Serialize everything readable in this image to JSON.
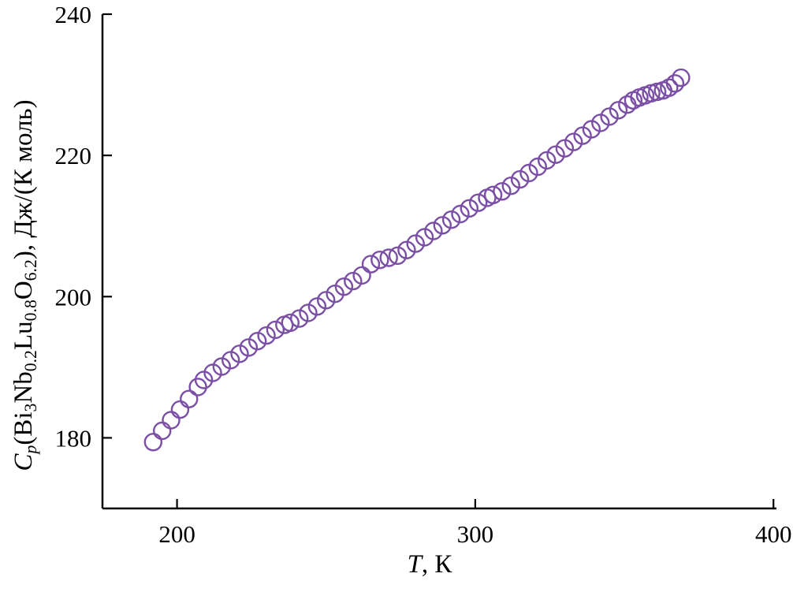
{
  "chart_data": {
    "type": "scatter",
    "title": "",
    "xlabel_text": "T, К",
    "ylabel_text": "Cp(Bi3Nb0.2Lu0.8O6.2), Дж/(К моль)",
    "xlabel_segments": [
      {
        "text": "T",
        "style": "italic"
      },
      {
        "text": ", К",
        "style": "normal"
      }
    ],
    "ylabel_segments": [
      {
        "text": "C",
        "style": "italic"
      },
      {
        "text": "p",
        "style": "italic-sub"
      },
      {
        "text": "(Bi",
        "style": "normal"
      },
      {
        "text": "3",
        "style": "sub"
      },
      {
        "text": "Nb",
        "style": "normal"
      },
      {
        "text": "0.2",
        "style": "sub"
      },
      {
        "text": "Lu",
        "style": "normal"
      },
      {
        "text": "0.8",
        "style": "sub"
      },
      {
        "text": "O",
        "style": "normal"
      },
      {
        "text": "6.2",
        "style": "sub"
      },
      {
        "text": ")",
        "style": "normal"
      },
      {
        "text": ", Дж/(К моль)",
        "style": "normal"
      }
    ],
    "xlim": [
      175,
      401
    ],
    "ylim": [
      170,
      240
    ],
    "x_ticks": [
      200,
      300,
      400
    ],
    "y_ticks": [
      180,
      200,
      220,
      240
    ],
    "grid": false,
    "legend": "none",
    "axis_color": "#000000",
    "marker": {
      "shape": "open-circle",
      "color": "#7a4fa5",
      "radius_px": 10.5,
      "stroke_width": 2.4
    },
    "series": [
      {
        "name": "Cp(Bi3Nb0.2Lu0.8O6.2)",
        "points": [
          [
            192,
            179.4
          ],
          [
            195,
            181.0
          ],
          [
            198,
            182.5
          ],
          [
            201,
            184.0
          ],
          [
            204,
            185.5
          ],
          [
            207,
            187.2
          ],
          [
            209,
            188.2
          ],
          [
            212,
            189.2
          ],
          [
            215,
            190.1
          ],
          [
            218,
            191.0
          ],
          [
            221,
            191.9
          ],
          [
            224,
            192.8
          ],
          [
            227,
            193.7
          ],
          [
            230,
            194.5
          ],
          [
            233,
            195.3
          ],
          [
            236,
            196.0
          ],
          [
            238,
            196.3
          ],
          [
            241,
            196.9
          ],
          [
            244,
            197.7
          ],
          [
            247,
            198.6
          ],
          [
            250,
            199.5
          ],
          [
            253,
            200.4
          ],
          [
            256,
            201.4
          ],
          [
            259,
            202.2
          ],
          [
            262,
            203.0
          ],
          [
            265,
            204.6
          ],
          [
            268,
            205.2
          ],
          [
            271,
            205.5
          ],
          [
            274,
            205.8
          ],
          [
            277,
            206.6
          ],
          [
            280,
            207.5
          ],
          [
            283,
            208.4
          ],
          [
            286,
            209.3
          ],
          [
            289,
            210.1
          ],
          [
            292,
            210.9
          ],
          [
            295,
            211.7
          ],
          [
            298,
            212.5
          ],
          [
            301,
            213.3
          ],
          [
            304,
            214.0
          ],
          [
            306,
            214.4
          ],
          [
            309,
            214.9
          ],
          [
            312,
            215.7
          ],
          [
            315,
            216.6
          ],
          [
            318,
            217.5
          ],
          [
            321,
            218.4
          ],
          [
            324,
            219.3
          ],
          [
            327,
            220.1
          ],
          [
            330,
            221.0
          ],
          [
            333,
            221.9
          ],
          [
            336,
            222.8
          ],
          [
            339,
            223.7
          ],
          [
            342,
            224.6
          ],
          [
            345,
            225.5
          ],
          [
            348,
            226.4
          ],
          [
            351,
            227.2
          ],
          [
            353,
            227.8
          ],
          [
            355,
            228.2
          ],
          [
            357,
            228.5
          ],
          [
            359,
            228.8
          ],
          [
            361,
            229.0
          ],
          [
            363,
            229.2
          ],
          [
            365,
            229.6
          ],
          [
            367,
            230.2
          ],
          [
            369,
            231.0
          ]
        ]
      }
    ]
  }
}
